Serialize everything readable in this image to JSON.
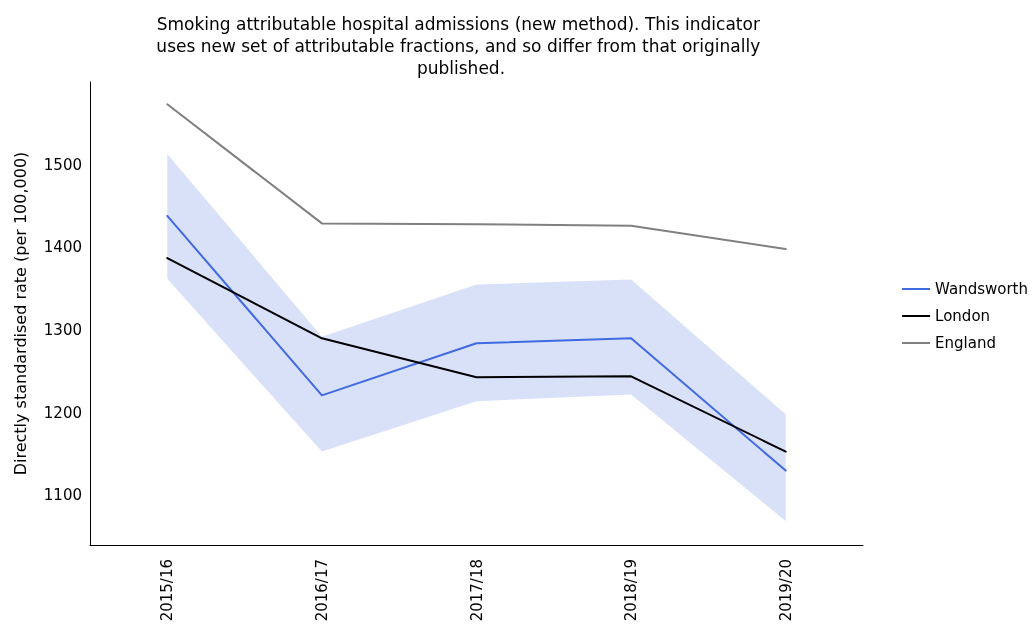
{
  "chart_data": {
    "type": "line",
    "title": "Smoking attributable hospital admissions (new method). This indicator uses new set of attributable fractions, and so differ from that originally published.",
    "ylabel": "Directly standardised rate (per 100,000)",
    "categories": [
      "2015/16",
      "2016/17",
      "2017/18",
      "2018/19",
      "2019/20"
    ],
    "series": [
      {
        "name": "Wandsworth",
        "color": "#4169e1",
        "values": [
          1438,
          1221,
          1284,
          1290,
          1130
        ],
        "lower": [
          1362,
          1153,
          1214,
          1222,
          1069
        ],
        "upper": [
          1513,
          1292,
          1355,
          1361,
          1198
        ]
      },
      {
        "name": "London",
        "color": "#000000",
        "values": [
          1387,
          1290,
          1243,
          1244,
          1153
        ]
      },
      {
        "name": "England",
        "color": "#808080",
        "values": [
          1573,
          1429,
          1428,
          1426,
          1398
        ]
      }
    ],
    "ylim": [
      1040,
      1600
    ],
    "yticks": [
      1100,
      1200,
      1300,
      1400,
      1500
    ],
    "grid": false,
    "legend": "right",
    "marker": "none",
    "line_style": "solid"
  }
}
